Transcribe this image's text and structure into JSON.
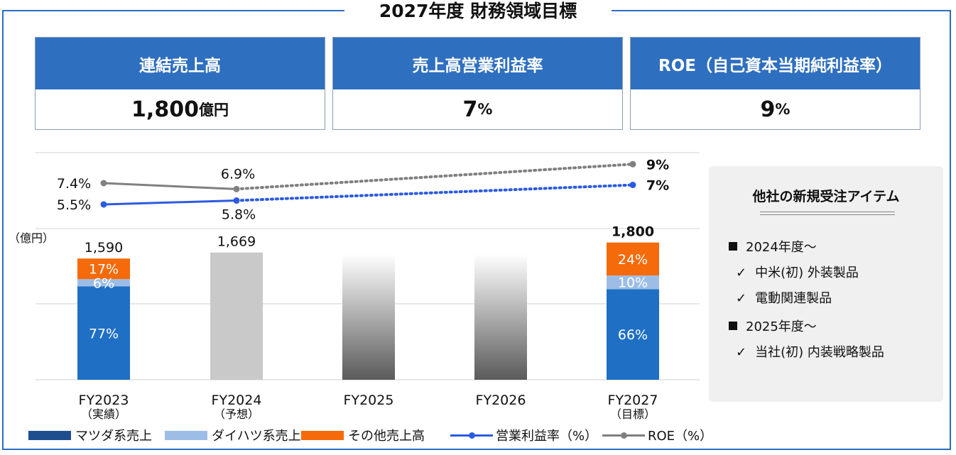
{
  "title": "2027年度 財務領域目標",
  "kpis": [
    {
      "label": "連結売上高",
      "value": "1,800",
      "unit": "億円"
    },
    {
      "label": "売上高営業利益率",
      "value": "7",
      "unit": "%"
    },
    {
      "label": "ROE（自己資本当期純利益率）",
      "value": "9",
      "unit": "%"
    }
  ],
  "chart_data": {
    "type": "bar",
    "ylabel": "（億円）",
    "categories": [
      {
        "label": "FY2023",
        "sublabel": "（実績）"
      },
      {
        "label": "FY2024",
        "sublabel": "（予想）"
      },
      {
        "label": "FY2025",
        "sublabel": ""
      },
      {
        "label": "FY2026",
        "sublabel": ""
      },
      {
        "label": "FY2027",
        "sublabel": "（目標）"
      }
    ],
    "totals": [
      1590,
      1669,
      null,
      null,
      1800
    ],
    "total_labels": [
      "1,590",
      "1,669",
      "",
      "",
      "1,800"
    ],
    "composition": [
      {
        "マツダ系売上": 77,
        "ダイハツ系売上": 6,
        "その他売上高": 17
      },
      null,
      null,
      null,
      {
        "マツダ系売上": 66,
        "ダイハツ系売上": 10,
        "その他売上高": 24
      }
    ],
    "series": [
      {
        "name": "マツダ系売上",
        "color": "#1f6fc5"
      },
      {
        "name": "ダイハツ系売上",
        "color": "#9dbde6"
      },
      {
        "name": "その他売上高",
        "color": "#f56a0a"
      }
    ],
    "line_series": [
      {
        "name": "営業利益率（%）",
        "color": "#2c5be0",
        "values": [
          5.5,
          5.8,
          null,
          null,
          7
        ],
        "labels": [
          "5.5%",
          "5.8%",
          "",
          "",
          "7%"
        ]
      },
      {
        "name": "ROE（%）",
        "color": "#808080",
        "values": [
          7.4,
          6.9,
          null,
          null,
          9
        ],
        "labels": [
          "7.4%",
          "6.9%",
          "",
          "",
          "9%"
        ]
      }
    ],
    "forecast_bar_color": "#c9c9c9"
  },
  "legend": [
    {
      "name": "マツダ系売上",
      "color": "#1f4e8f",
      "kind": "box"
    },
    {
      "name": "ダイハツ系売上",
      "color": "#9dbde6",
      "kind": "box"
    },
    {
      "name": "その他売上高",
      "color": "#f56a0a",
      "kind": "box"
    },
    {
      "name": "営業利益率（%）",
      "color": "#2c5be0",
      "kind": "line"
    },
    {
      "name": "ROE（%）",
      "color": "#808080",
      "kind": "line"
    }
  ],
  "panel": {
    "title": "他社の新規受注アイテム",
    "groups": [
      {
        "heading": "2024年度～",
        "items": [
          "中米(初) 外装製品",
          "電動関連製品"
        ]
      },
      {
        "heading": "2025年度～",
        "items": [
          "当社(初) 内装戦略製品"
        ]
      }
    ]
  }
}
